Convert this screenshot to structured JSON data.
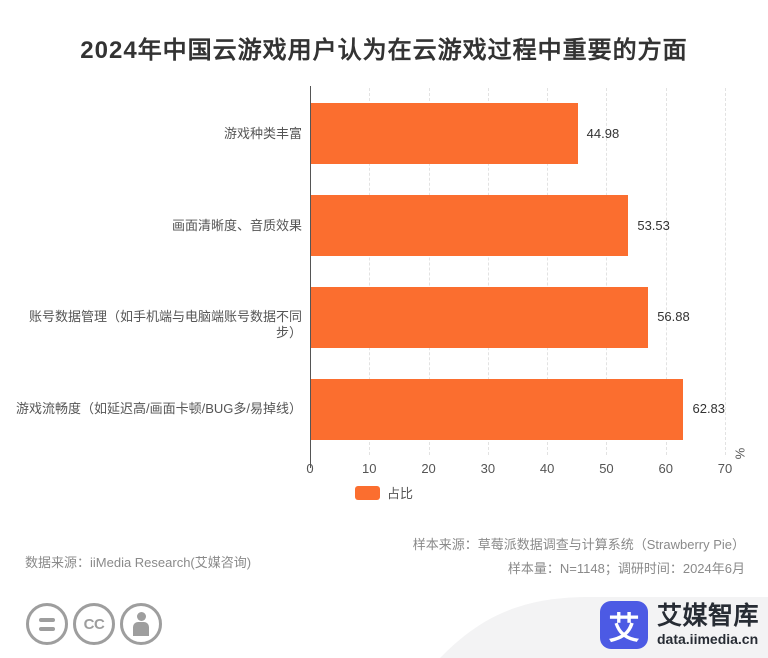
{
  "title": "2024年中国云游戏用户认为在云游戏过程中重要的方面",
  "chart_data": {
    "type": "bar",
    "orientation": "horizontal",
    "title": "2024年中国云游戏用户认为在云游戏过程中重要的方面",
    "categories": [
      "游戏种类丰富",
      "画面清晰度、音质效果",
      "账号数据管理（如手机端与电脑端账号数据不同步）",
      "游戏流畅度（如延迟高/画面卡顿/BUG多/易掉线）"
    ],
    "values": [
      44.98,
      53.53,
      56.88,
      62.83
    ],
    "series_name": "占比",
    "xlabel": "",
    "ylabel": "",
    "axis_unit": "%",
    "xlim": [
      0,
      70
    ],
    "xticks": [
      0,
      10,
      20,
      30,
      40,
      50,
      60,
      70
    ],
    "grid": "vertical-dashed",
    "bar_color": "#fb6e2f",
    "legend_position": "bottom-center"
  },
  "footer": {
    "data_source": "数据来源：iiMedia Research(艾媒咨询)",
    "sample_source": "样本来源：草莓派数据调查与计算系统（Strawberry Pie）",
    "sample_info": "样本量：N=1148；调研时间：2024年6月"
  },
  "branding": {
    "logo_char": "艾",
    "name": "艾媒智库",
    "url": "data.iimedia.cn",
    "logo_color": "#4c5ae4",
    "text_color": "#272c34"
  },
  "license": {
    "cc_label": "CC"
  },
  "colors": {
    "bar": "#fb6e2f",
    "axis": "#555555",
    "gridline": "#e2e2e2",
    "footer_text": "#8a8a8a",
    "wave": "#f3f3f4"
  }
}
